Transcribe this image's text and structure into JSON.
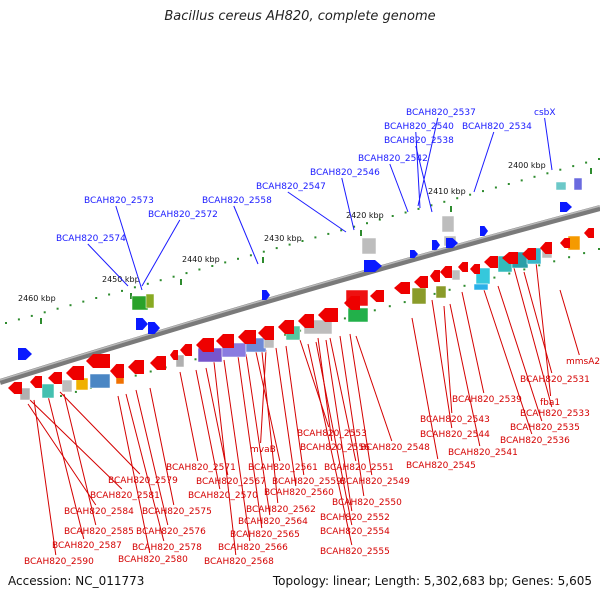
{
  "title": "Bacillus cereus AH820, complete genome",
  "footer": {
    "accession": "Accession: NC_011773",
    "summary": "Topology: linear; Length: 5,302,683 bp; Genes: 5,605"
  },
  "colors": {
    "forward_gene": "#0a1aff",
    "reverse_gene": "#ee0000",
    "blue_label": "#1a1aff",
    "red_label": "#d40000",
    "backbone": "#7a7a7a",
    "tick": "#2e8b2e"
  },
  "scale_labels": [
    "2400 kbp",
    "2410 kbp",
    "2420 kbp",
    "2430 kbp",
    "2440 kbp",
    "2450 kbp",
    "2460 kbp"
  ],
  "forward_gene_labels": [
    "BCAH820_2537",
    "csbX",
    "BCAH820_2540",
    "BCAH820_2534",
    "BCAH820_2538",
    "BCAH820_2542",
    "BCAH820_2546",
    "BCAH820_2547",
    "BCAH820_2573",
    "BCAH820_2558",
    "BCAH820_2572",
    "BCAH820_2574"
  ],
  "reverse_gene_labels": [
    "mmsA2",
    "BCAH820_2531",
    "BCAH820_2539",
    "fba1",
    "BCAH820_2533",
    "BCAH820_2543",
    "BCAH820_2535",
    "BCAH820_2544",
    "BCAH820_2536",
    "BCAH820_2553",
    "BCAH820_2548",
    "BCAH820_2541",
    "mvaB",
    "BCAH820_2556",
    "BCAH820_2545",
    "BCAH820_2571",
    "BCAH820_2561",
    "BCAH820_2551",
    "BCAH820_2579",
    "BCAH820_2567",
    "BCAH820_2559",
    "BCAH820_2549",
    "BCAH820_2581",
    "BCAH820_2570",
    "BCAH820_2560",
    "BCAH820_2550",
    "BCAH820_2584",
    "BCAH820_2575",
    "BCAH820_2562",
    "BCAH820_2564",
    "BCAH820_2552",
    "BCAH820_2585",
    "BCAH820_2576",
    "BCAH820_2565",
    "BCAH820_2554",
    "BCAH820_2587",
    "BCAH820_2578",
    "BCAH820_2566",
    "BCAH820_2555",
    "BCAH820_2590",
    "BCAH820_2580",
    "BCAH820_2568"
  ]
}
